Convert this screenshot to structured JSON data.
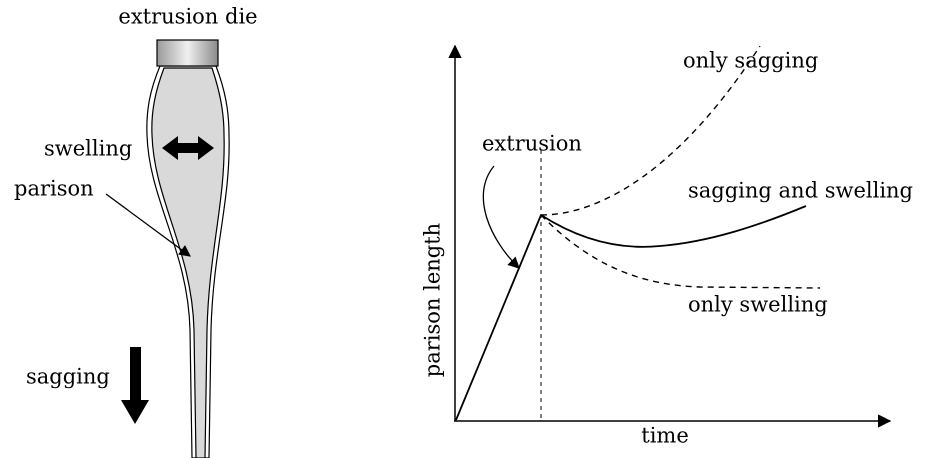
{
  "parison_figure": {
    "die_label": "extrusion die",
    "swelling_label": "swelling",
    "parison_label": "parison",
    "sagging_label": "sagging"
  },
  "length_plot": {
    "y_axis_label": "parison length",
    "x_axis_label": "time",
    "extrusion_label": "extrusion",
    "only_sagging_label": "only sagging",
    "both_label": "sagging and swelling",
    "only_swelling_label": "only swelling"
  }
}
